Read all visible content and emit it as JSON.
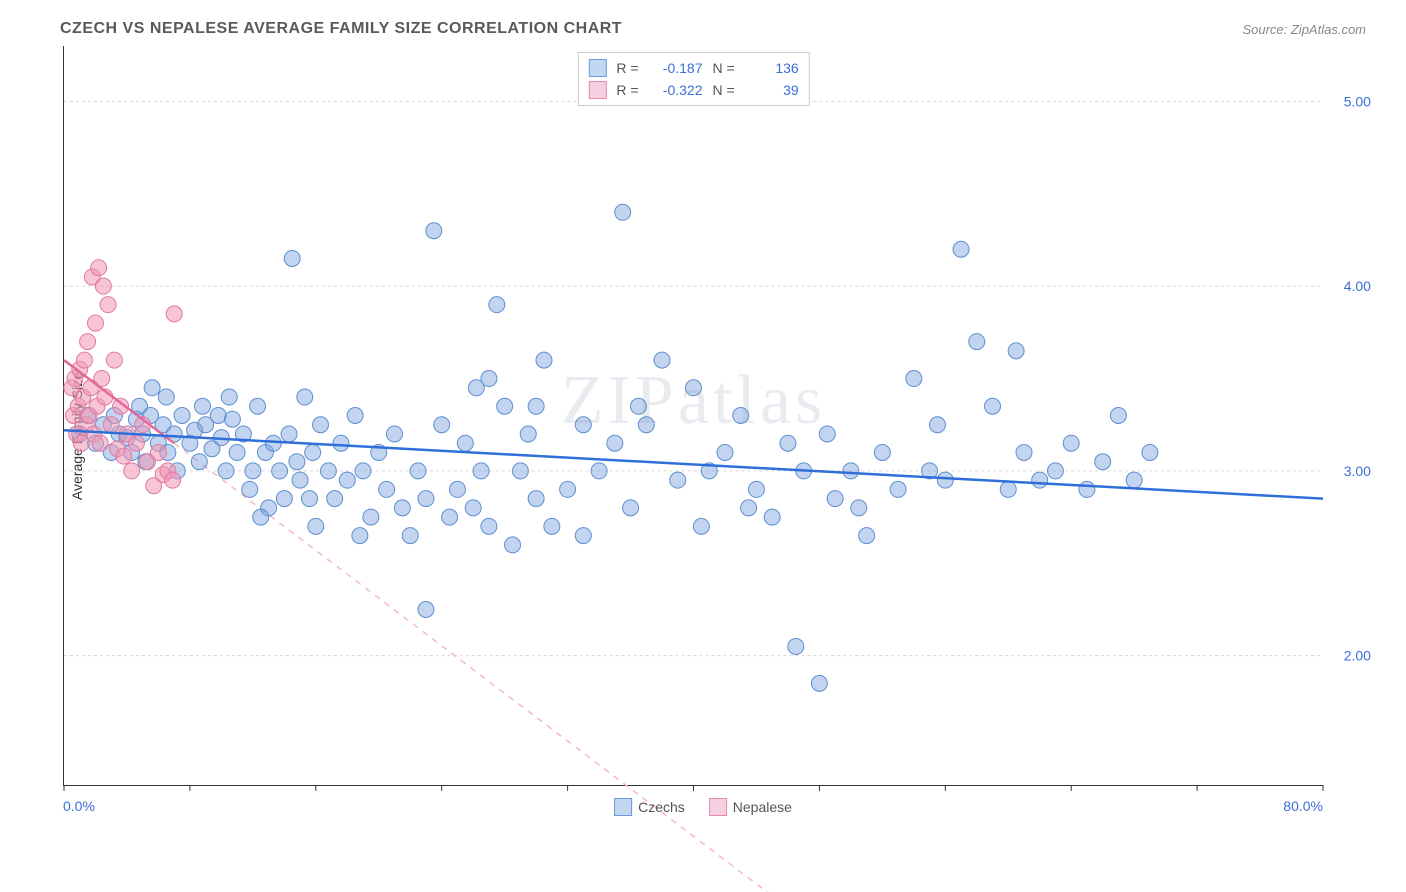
{
  "header": {
    "title": "CZECH VS NEPALESE AVERAGE FAMILY SIZE CORRELATION CHART",
    "source": "Source: ZipAtlas.com"
  },
  "chart": {
    "type": "scatter",
    "watermark": "ZIPatlas",
    "y_axis_label": "Average Family Size",
    "x_min_label": "0.0%",
    "x_max_label": "80.0%",
    "xlim": [
      0,
      80
    ],
    "ylim": [
      1.3,
      5.3
    ],
    "y_ticks": [
      2.0,
      3.0,
      4.0,
      5.0
    ],
    "y_tick_labels": [
      "2.00",
      "3.00",
      "4.00",
      "5.00"
    ],
    "x_ticks": [
      0,
      8,
      16,
      24,
      32,
      40,
      48,
      56,
      64,
      72,
      80
    ],
    "grid_color": "#d8d8d8",
    "grid_dash": "3,3",
    "axis_color": "#333333",
    "y_tick_label_color": "#3b6fd8",
    "series_a": {
      "name": "Czechs",
      "r": "-0.187",
      "n": "136",
      "point_fill": "rgba(120,160,220,0.45)",
      "point_stroke": "#5e8fd0",
      "line_color": "#2e6fd8",
      "line_width": 2.5,
      "swatch_fill": "#c3d6f2",
      "swatch_stroke": "#6a9be0",
      "regression": {
        "x1": 0,
        "y1": 3.22,
        "x2": 80,
        "y2": 2.85
      },
      "points": [
        [
          1,
          3.2
        ],
        [
          1.5,
          3.3
        ],
        [
          2,
          3.15
        ],
        [
          2.5,
          3.25
        ],
        [
          3,
          3.1
        ],
        [
          3.2,
          3.3
        ],
        [
          3.5,
          3.2
        ],
        [
          4,
          3.18
        ],
        [
          4.3,
          3.1
        ],
        [
          4.6,
          3.28
        ],
        [
          5,
          3.2
        ],
        [
          5.2,
          3.05
        ],
        [
          5.5,
          3.3
        ],
        [
          6,
          3.15
        ],
        [
          6.3,
          3.25
        ],
        [
          6.6,
          3.1
        ],
        [
          7,
          3.2
        ],
        [
          7.2,
          3.0
        ],
        [
          7.5,
          3.3
        ],
        [
          8,
          3.15
        ],
        [
          8.3,
          3.22
        ],
        [
          8.6,
          3.05
        ],
        [
          9,
          3.25
        ],
        [
          9.4,
          3.12
        ],
        [
          9.8,
          3.3
        ],
        [
          10,
          3.18
        ],
        [
          10.3,
          3.0
        ],
        [
          10.7,
          3.28
        ],
        [
          11,
          3.1
        ],
        [
          11.4,
          3.2
        ],
        [
          11.8,
          2.9
        ],
        [
          12,
          3.0
        ],
        [
          12.3,
          3.35
        ],
        [
          12.8,
          3.1
        ],
        [
          13,
          2.8
        ],
        [
          13.3,
          3.15
        ],
        [
          13.7,
          3.0
        ],
        [
          14,
          2.85
        ],
        [
          14.3,
          3.2
        ],
        [
          14.8,
          3.05
        ],
        [
          15,
          2.95
        ],
        [
          15.3,
          3.4
        ],
        [
          15.8,
          3.1
        ],
        [
          16,
          2.7
        ],
        [
          16.3,
          3.25
        ],
        [
          16.8,
          3.0
        ],
        [
          17.2,
          2.85
        ],
        [
          17.6,
          3.15
        ],
        [
          18,
          2.95
        ],
        [
          18.5,
          3.3
        ],
        [
          19,
          3.0
        ],
        [
          19.5,
          2.75
        ],
        [
          20,
          3.1
        ],
        [
          20.5,
          2.9
        ],
        [
          21,
          3.2
        ],
        [
          21.5,
          2.8
        ],
        [
          22,
          2.65
        ],
        [
          22.5,
          3.0
        ],
        [
          23,
          2.85
        ],
        [
          23.5,
          4.3
        ],
        [
          24,
          3.25
        ],
        [
          24.5,
          2.75
        ],
        [
          25,
          2.9
        ],
        [
          25.5,
          3.15
        ],
        [
          26,
          2.8
        ],
        [
          26.5,
          3.0
        ],
        [
          27,
          3.5
        ],
        [
          27.5,
          3.9
        ],
        [
          28,
          3.35
        ],
        [
          28.5,
          2.6
        ],
        [
          29,
          3.0
        ],
        [
          29.5,
          3.2
        ],
        [
          30,
          2.85
        ],
        [
          30.5,
          3.6
        ],
        [
          31,
          2.7
        ],
        [
          32,
          2.9
        ],
        [
          33,
          2.65
        ],
        [
          34,
          3.0
        ],
        [
          35,
          3.15
        ],
        [
          35.5,
          4.4
        ],
        [
          36,
          2.8
        ],
        [
          37,
          3.25
        ],
        [
          38,
          3.6
        ],
        [
          39,
          2.95
        ],
        [
          40,
          3.45
        ],
        [
          40.5,
          2.7
        ],
        [
          41,
          3.0
        ],
        [
          42,
          3.1
        ],
        [
          43,
          3.3
        ],
        [
          44,
          2.9
        ],
        [
          45,
          2.75
        ],
        [
          46,
          3.15
        ],
        [
          46.5,
          2.05
        ],
        [
          47,
          3.0
        ],
        [
          48,
          1.85
        ],
        [
          48.5,
          3.2
        ],
        [
          49,
          2.85
        ],
        [
          50,
          3.0
        ],
        [
          51,
          2.65
        ],
        [
          52,
          3.1
        ],
        [
          53,
          2.9
        ],
        [
          54,
          3.5
        ],
        [
          55,
          3.0
        ],
        [
          56,
          2.95
        ],
        [
          57,
          4.2
        ],
        [
          58,
          3.7
        ],
        [
          59,
          3.35
        ],
        [
          60,
          2.9
        ],
        [
          61,
          3.1
        ],
        [
          62,
          2.95
        ],
        [
          63,
          3.0
        ],
        [
          64,
          3.15
        ],
        [
          65,
          2.9
        ],
        [
          66,
          3.05
        ],
        [
          67,
          3.3
        ],
        [
          68,
          2.95
        ],
        [
          69,
          3.1
        ],
        [
          14.5,
          4.15
        ],
        [
          23,
          2.25
        ],
        [
          6.5,
          3.4
        ],
        [
          4.8,
          3.35
        ],
        [
          5.6,
          3.45
        ],
        [
          12.5,
          2.75
        ],
        [
          27,
          2.7
        ],
        [
          33,
          3.25
        ],
        [
          36.5,
          3.35
        ],
        [
          43.5,
          2.8
        ],
        [
          50.5,
          2.8
        ],
        [
          55.5,
          3.25
        ],
        [
          60.5,
          3.65
        ],
        [
          8.8,
          3.35
        ],
        [
          10.5,
          3.4
        ],
        [
          15.6,
          2.85
        ],
        [
          18.8,
          2.65
        ],
        [
          26.2,
          3.45
        ],
        [
          30,
          3.35
        ]
      ]
    },
    "series_b": {
      "name": "Nepalese",
      "r": "-0.322",
      "n": "39",
      "point_fill": "rgba(240,150,180,0.55)",
      "point_stroke": "#e07aa0",
      "line_color": "#e56898",
      "line_width": 2.5,
      "dash_color": "#f4b8cc",
      "swatch_fill": "#f6cfe0",
      "swatch_stroke": "#e88ab0",
      "regression_solid": {
        "x1": 0,
        "y1": 3.6,
        "x2": 7,
        "y2": 3.15
      },
      "regression_dash": {
        "x1": 7,
        "y1": 3.15,
        "x2": 45,
        "y2": 0.7
      },
      "points": [
        [
          0.5,
          3.45
        ],
        [
          0.6,
          3.3
        ],
        [
          0.7,
          3.5
        ],
        [
          0.8,
          3.2
        ],
        [
          0.9,
          3.35
        ],
        [
          1.0,
          3.55
        ],
        [
          1.1,
          3.15
        ],
        [
          1.2,
          3.4
        ],
        [
          1.3,
          3.6
        ],
        [
          1.4,
          3.25
        ],
        [
          1.5,
          3.7
        ],
        [
          1.6,
          3.3
        ],
        [
          1.7,
          3.45
        ],
        [
          1.8,
          4.05
        ],
        [
          1.9,
          3.2
        ],
        [
          2.0,
          3.8
        ],
        [
          2.1,
          3.35
        ],
        [
          2.2,
          4.1
        ],
        [
          2.3,
          3.15
        ],
        [
          2.4,
          3.5
        ],
        [
          2.5,
          4.0
        ],
        [
          2.6,
          3.4
        ],
        [
          2.8,
          3.9
        ],
        [
          3.0,
          3.25
        ],
        [
          3.2,
          3.6
        ],
        [
          3.4,
          3.12
        ],
        [
          3.6,
          3.35
        ],
        [
          3.8,
          3.08
        ],
        [
          4.0,
          3.2
        ],
        [
          4.3,
          3.0
        ],
        [
          4.6,
          3.15
        ],
        [
          5.0,
          3.25
        ],
        [
          5.3,
          3.05
        ],
        [
          5.7,
          2.92
        ],
        [
          6.0,
          3.1
        ],
        [
          6.3,
          2.98
        ],
        [
          6.6,
          3.0
        ],
        [
          6.9,
          2.95
        ],
        [
          7.0,
          3.85
        ]
      ]
    },
    "bottom_legend": [
      {
        "label": "Czechs",
        "fill": "#c3d6f2",
        "stroke": "#6a9be0"
      },
      {
        "label": "Nepalese",
        "fill": "#f6cfe0",
        "stroke": "#e88ab0"
      }
    ]
  }
}
